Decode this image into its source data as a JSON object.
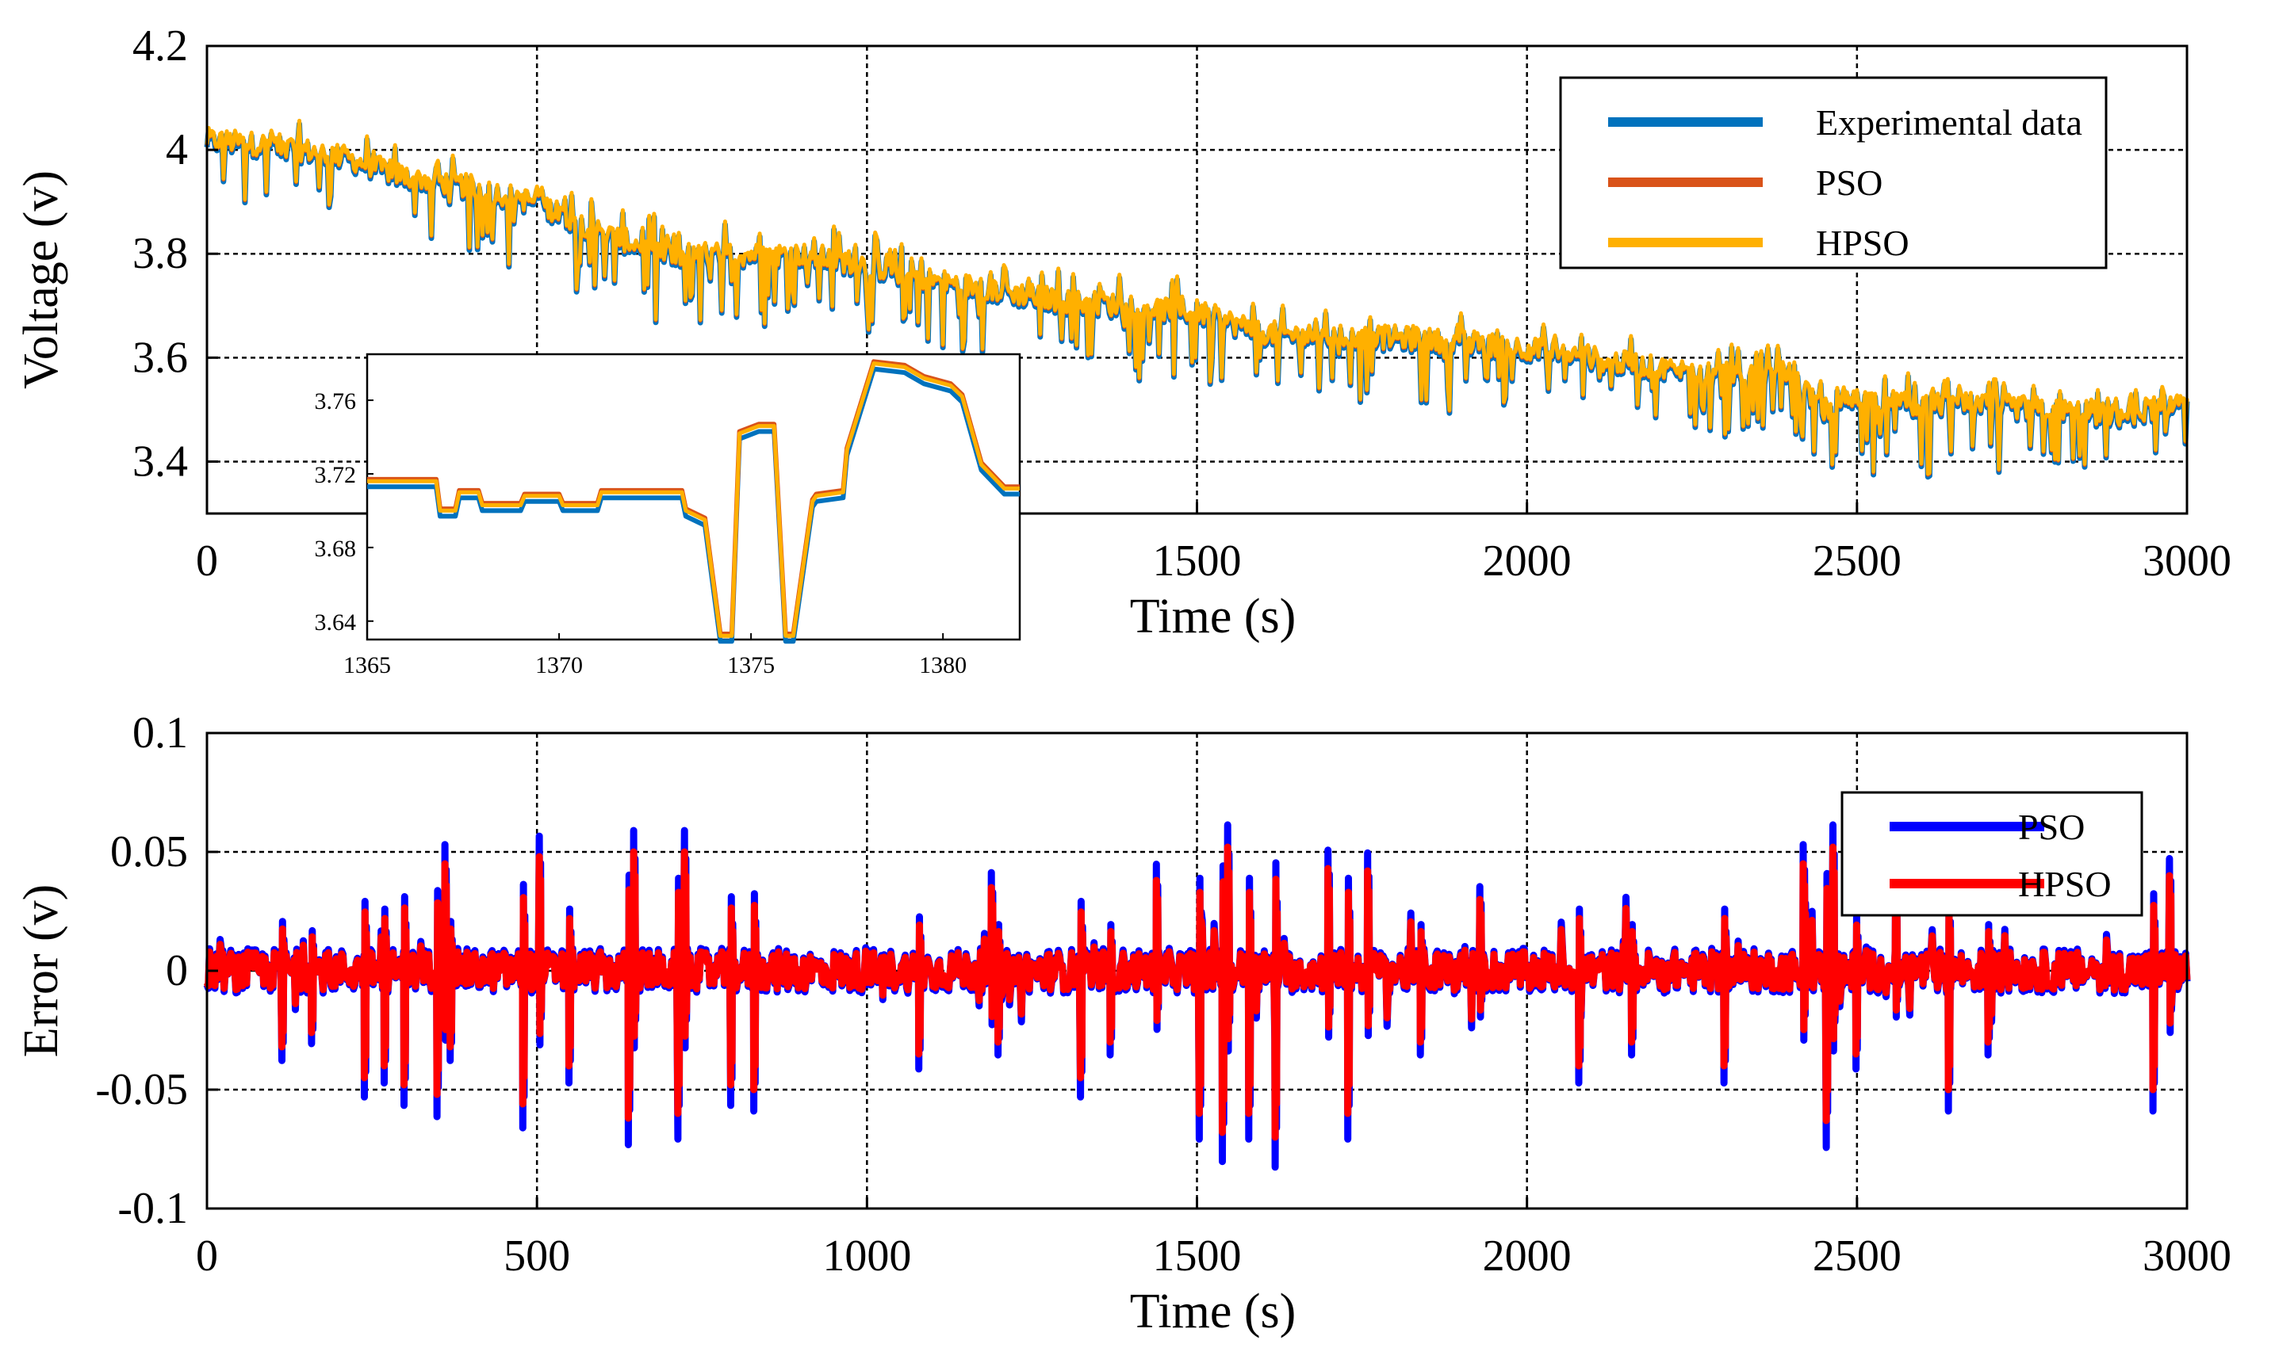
{
  "chart_data": [
    {
      "id": "voltage",
      "type": "line",
      "title": "",
      "xlabel": "Time (s)",
      "ylabel": "Voltage (v)",
      "xlim": [
        0,
        3000
      ],
      "ylim": [
        3.3,
        4.2
      ],
      "xticks": [
        0,
        500,
        1000,
        1500,
        2000,
        2500,
        3000
      ],
      "xtick_labels": [
        "0",
        "500",
        "1000",
        "1500",
        "2000",
        "2500",
        "3000"
      ],
      "yticks": [
        3.4,
        3.6,
        3.8,
        4.0,
        4.2
      ],
      "ytick_labels": [
        "3.4",
        "3.6",
        "3.8",
        "4",
        "4.2"
      ],
      "grid": true,
      "legend_position": "top-right",
      "series": [
        {
          "name": "Experimental data",
          "color": "#0072BD"
        },
        {
          "name": "PSO",
          "color": "#D95319"
        },
        {
          "name": "HPSO",
          "color": "#FFB000"
        }
      ],
      "trend": {
        "t": [
          0,
          100,
          200,
          300,
          400,
          500,
          600,
          700,
          800,
          900,
          1000,
          1100,
          1200,
          1300,
          1400,
          1500,
          1600,
          1700,
          1800,
          1900,
          2000,
          2100,
          2200,
          2300,
          2400,
          2450,
          2500,
          2600,
          2700,
          2800,
          2900,
          3000
        ],
        "v": [
          4.02,
          4.01,
          3.99,
          3.95,
          3.93,
          3.9,
          3.84,
          3.8,
          3.8,
          3.8,
          3.78,
          3.75,
          3.73,
          3.71,
          3.7,
          3.69,
          3.65,
          3.64,
          3.64,
          3.63,
          3.62,
          3.6,
          3.58,
          3.57,
          3.57,
          3.5,
          3.52,
          3.51,
          3.51,
          3.5,
          3.49,
          3.52
        ]
      },
      "spread": 0.045,
      "inset": {
        "xlim": [
          1365,
          1382
        ],
        "ylim": [
          3.63,
          3.785
        ],
        "xticks": [
          1365,
          1370,
          1375,
          1380
        ],
        "xtick_labels": [
          "1365",
          "1370",
          "1375",
          "1380"
        ],
        "yticks": [
          3.64,
          3.68,
          3.72,
          3.76
        ],
        "ytick_labels": [
          "3.64",
          "3.68",
          "3.72",
          "3.76"
        ],
        "t": [
          1365,
          1366.8,
          1366.9,
          1367.3,
          1367.4,
          1367.9,
          1368.0,
          1369.0,
          1369.1,
          1370.0,
          1370.1,
          1371.0,
          1371.1,
          1373.2,
          1373.3,
          1373.8,
          1374.2,
          1374.5,
          1374.7,
          1375.2,
          1375.6,
          1375.9,
          1376.1,
          1376.6,
          1376.7,
          1377.4,
          1377.5,
          1378.2,
          1379.0,
          1379.5,
          1380.2,
          1380.5,
          1381.0,
          1381.6,
          1382
        ],
        "v": [
          3.716,
          3.716,
          3.7,
          3.7,
          3.71,
          3.71,
          3.703,
          3.703,
          3.708,
          3.708,
          3.703,
          3.703,
          3.71,
          3.71,
          3.7,
          3.695,
          3.632,
          3.632,
          3.742,
          3.746,
          3.746,
          3.632,
          3.632,
          3.705,
          3.708,
          3.71,
          3.733,
          3.78,
          3.778,
          3.772,
          3.768,
          3.762,
          3.725,
          3.712,
          3.712
        ]
      }
    },
    {
      "id": "error",
      "type": "line",
      "title": "",
      "xlabel": "Time (s)",
      "ylabel": "Error (v)",
      "xlim": [
        0,
        3000
      ],
      "ylim": [
        -0.1,
        0.1
      ],
      "xticks": [
        0,
        500,
        1000,
        1500,
        2000,
        2500,
        3000
      ],
      "xtick_labels": [
        "0",
        "500",
        "1000",
        "1500",
        "2000",
        "2500",
        "3000"
      ],
      "yticks": [
        -0.1,
        -0.05,
        0,
        0.05,
        0.1
      ],
      "ytick_labels": [
        "-0.1",
        "-0.05",
        "0",
        "0.05",
        "0.1"
      ],
      "grid": true,
      "legend_position": "top-right",
      "series": [
        {
          "name": "PSO",
          "color": "#0000FF"
        },
        {
          "name": "HPSO",
          "color": "#FF0000"
        }
      ],
      "spikes": {
        "t": [
          115,
          160,
          240,
          270,
          300,
          350,
          362,
          370,
          480,
          505,
          550,
          640,
          648,
          715,
          725,
          795,
          830,
          1080,
          1190,
          1200,
          1325,
          1370,
          1440,
          1505,
          1540,
          1548,
          1580,
          1620,
          1700,
          1730,
          1760,
          1840,
          1930,
          2080,
          2160,
          2300,
          2420,
          2455,
          2465,
          2500,
          2560,
          2640,
          2700,
          2950,
          2975
        ],
        "v": [
          -0.032,
          -0.026,
          -0.045,
          -0.04,
          -0.048,
          -0.052,
          0.045,
          -0.032,
          -0.056,
          0.048,
          -0.04,
          -0.062,
          0.05,
          -0.06,
          0.05,
          -0.048,
          -0.05,
          -0.035,
          0.035,
          -0.03,
          -0.045,
          -0.03,
          0.038,
          -0.06,
          -0.068,
          0.052,
          -0.06,
          -0.07,
          0.043,
          -0.06,
          0.042,
          -0.03,
          0.03,
          -0.04,
          -0.03,
          -0.04,
          0.045,
          -0.063,
          0.052,
          -0.035,
          0.03,
          -0.05,
          -0.03,
          -0.05,
          0.04
        ]
      }
    }
  ]
}
